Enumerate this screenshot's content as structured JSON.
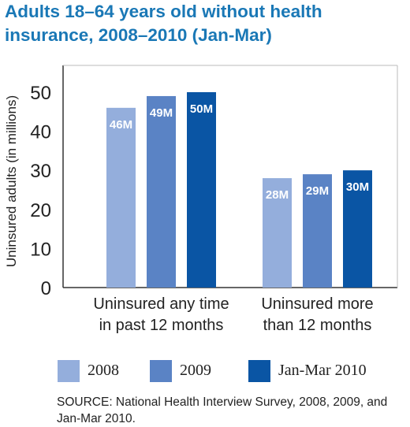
{
  "chart_data": {
    "type": "bar",
    "title": "Adults 18–64 years old without health insurance, 2008–2010 (Jan-Mar)",
    "ylabel": "Uninsured adults (in millions)",
    "xlabel": "",
    "ylim": [
      0,
      52
    ],
    "yticks": [
      "0",
      "10",
      "20",
      "30",
      "40",
      "50"
    ],
    "categories": [
      [
        "Uninsured any time",
        "in past 12 months"
      ],
      [
        "Uninsured more",
        "than 12 months"
      ]
    ],
    "series": [
      {
        "name": "2008",
        "color": "#94aedc",
        "values": [
          46,
          28
        ],
        "labels": [
          "46M",
          "28M"
        ]
      },
      {
        "name": "2009",
        "color": "#5a83c5",
        "values": [
          49,
          29
        ],
        "labels": [
          "49M",
          "29M"
        ]
      },
      {
        "name": "Jan-Mar 2010",
        "color": "#0a55a4",
        "values": [
          50,
          30
        ],
        "labels": [
          "50M",
          "30M"
        ]
      }
    ],
    "legend_position": "bottom",
    "grid": false
  },
  "source_note": "SOURCE: National Health Interview Survey, 2008, 2009, and Jan-Mar 2010."
}
